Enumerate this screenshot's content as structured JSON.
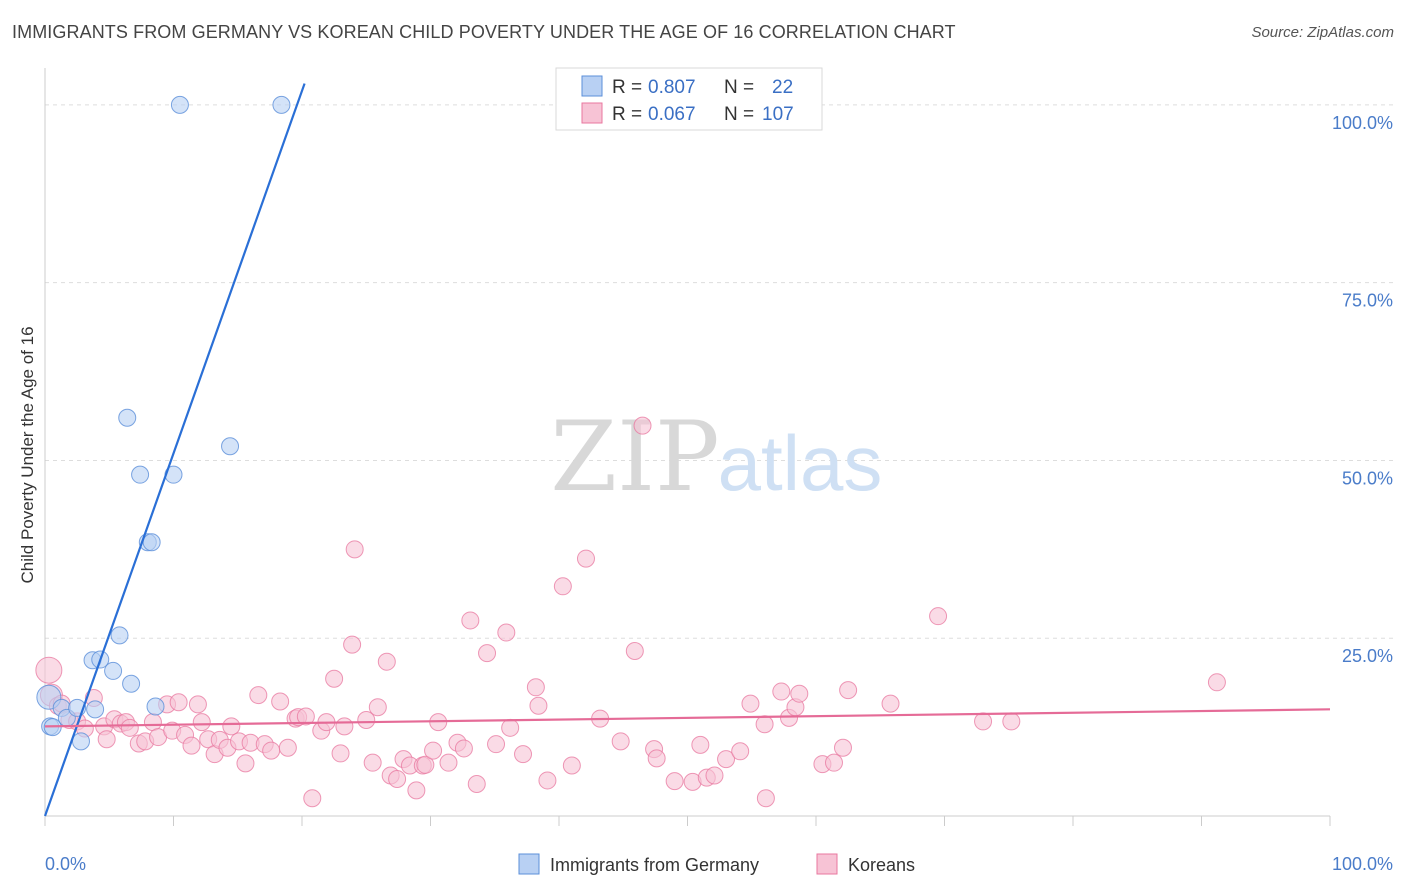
{
  "title": "IMMIGRANTS FROM GERMANY VS KOREAN CHILD POVERTY UNDER THE AGE OF 16 CORRELATION CHART",
  "source": "Source: ZipAtlas.com",
  "watermark": {
    "zip": "ZIP",
    "atlas": "atlas"
  },
  "colors": {
    "blue": "#5b8fd9",
    "blue_fill": "#b8d0f3",
    "blue_line": "#2a6fd6",
    "pink": "#e8779f",
    "pink_fill": "#f7c3d5",
    "pink_line": "#e56b97",
    "axis_text": "#4a7cc9"
  },
  "legend": {
    "rows": [
      {
        "r_label": "R =",
        "r_value": "0.807",
        "n_label": "N =",
        "n_value": "22"
      },
      {
        "r_label": "R =",
        "r_value": "0.067",
        "n_label": "N =",
        "n_value": "107"
      }
    ]
  },
  "bottom_legend": [
    {
      "label": "Immigrants from Germany"
    },
    {
      "label": "Koreans"
    }
  ],
  "chart_data": {
    "type": "scatter",
    "title": "IMMIGRANTS FROM GERMANY VS KOREAN CHILD POVERTY UNDER THE AGE OF 16 CORRELATION CHART",
    "xlabel": "",
    "ylabel": "Child Poverty Under the Age of 16",
    "xlim": [
      0,
      100
    ],
    "ylim": [
      0,
      105
    ],
    "x_tick_labels": [
      {
        "value": 0,
        "label": "0.0%"
      },
      {
        "value": 100,
        "label": "100.0%"
      }
    ],
    "y_tick_labels": [
      {
        "value": 25,
        "label": "25.0%"
      },
      {
        "value": 50,
        "label": "50.0%"
      },
      {
        "value": 75,
        "label": "75.0%"
      },
      {
        "value": 100,
        "label": "100.0%"
      }
    ],
    "series": [
      {
        "name": "Immigrants from Germany",
        "color": "#5b8fd9",
        "trend": {
          "x": [
            0,
            20.2
          ],
          "y": [
            0,
            103
          ]
        },
        "points": [
          [
            0.3,
            16.7
          ],
          [
            0.4,
            12.6
          ],
          [
            1.3,
            15.2
          ],
          [
            1.7,
            13.8
          ],
          [
            2.5,
            15.2
          ],
          [
            2.8,
            10.5
          ],
          [
            3.9,
            15.0
          ],
          [
            3.7,
            21.9
          ],
          [
            4.3,
            22.0
          ],
          [
            5.3,
            20.4
          ],
          [
            5.8,
            25.4
          ],
          [
            6.7,
            18.6
          ],
          [
            6.4,
            56.0
          ],
          [
            7.4,
            48.0
          ],
          [
            8.0,
            38.5
          ],
          [
            8.3,
            38.5
          ],
          [
            8.6,
            15.4
          ],
          [
            10.0,
            48.0
          ],
          [
            10.5,
            100.0
          ],
          [
            14.4,
            52.0
          ],
          [
            18.4,
            100.0
          ],
          [
            0.6,
            12.5
          ]
        ]
      },
      {
        "name": "Koreans",
        "color": "#e8779f",
        "trend": {
          "x": [
            0,
            100
          ],
          "y": [
            12.6,
            15.0
          ]
        },
        "points": [
          [
            0.3,
            20.5
          ],
          [
            0.5,
            17.0
          ],
          [
            1.0,
            15.5
          ],
          [
            1.3,
            15.8
          ],
          [
            1.9,
            13.5
          ],
          [
            2.5,
            13.3
          ],
          [
            3.1,
            12.3
          ],
          [
            3.8,
            16.6
          ],
          [
            4.6,
            12.6
          ],
          [
            4.8,
            10.8
          ],
          [
            5.4,
            13.6
          ],
          [
            5.9,
            13.0
          ],
          [
            6.3,
            13.2
          ],
          [
            6.6,
            12.4
          ],
          [
            7.3,
            10.2
          ],
          [
            7.8,
            10.5
          ],
          [
            8.4,
            13.2
          ],
          [
            8.8,
            11.1
          ],
          [
            9.5,
            15.7
          ],
          [
            9.9,
            12.0
          ],
          [
            10.4,
            16.0
          ],
          [
            10.9,
            11.4
          ],
          [
            11.4,
            9.9
          ],
          [
            11.9,
            15.7
          ],
          [
            12.2,
            13.2
          ],
          [
            12.7,
            10.8
          ],
          [
            13.2,
            8.7
          ],
          [
            13.6,
            10.7
          ],
          [
            14.2,
            9.6
          ],
          [
            14.5,
            12.6
          ],
          [
            15.1,
            10.5
          ],
          [
            15.6,
            7.4
          ],
          [
            16.0,
            10.3
          ],
          [
            16.6,
            17.0
          ],
          [
            17.1,
            10.1
          ],
          [
            17.6,
            9.2
          ],
          [
            18.3,
            16.1
          ],
          [
            18.9,
            9.6
          ],
          [
            19.5,
            13.7
          ],
          [
            19.7,
            13.9
          ],
          [
            20.3,
            14.0
          ],
          [
            20.8,
            2.5
          ],
          [
            21.5,
            12.0
          ],
          [
            21.9,
            13.2
          ],
          [
            22.5,
            19.3
          ],
          [
            23.0,
            8.8
          ],
          [
            23.3,
            12.6
          ],
          [
            23.9,
            24.1
          ],
          [
            24.1,
            37.5
          ],
          [
            25.0,
            13.5
          ],
          [
            25.5,
            7.5
          ],
          [
            25.9,
            15.3
          ],
          [
            26.6,
            21.7
          ],
          [
            26.9,
            5.7
          ],
          [
            27.4,
            5.2
          ],
          [
            27.9,
            8.0
          ],
          [
            28.4,
            7.1
          ],
          [
            28.9,
            3.6
          ],
          [
            29.4,
            7.1
          ],
          [
            29.6,
            7.2
          ],
          [
            30.2,
            9.2
          ],
          [
            30.6,
            13.2
          ],
          [
            31.4,
            7.5
          ],
          [
            32.1,
            10.3
          ],
          [
            32.6,
            9.5
          ],
          [
            33.1,
            27.5
          ],
          [
            33.6,
            4.5
          ],
          [
            34.4,
            22.9
          ],
          [
            35.1,
            10.1
          ],
          [
            35.9,
            25.8
          ],
          [
            36.2,
            12.4
          ],
          [
            37.2,
            8.7
          ],
          [
            38.2,
            18.1
          ],
          [
            38.4,
            15.5
          ],
          [
            39.1,
            5.0
          ],
          [
            40.3,
            32.3
          ],
          [
            41.0,
            7.1
          ],
          [
            42.1,
            36.2
          ],
          [
            43.2,
            13.7
          ],
          [
            44.8,
            10.5
          ],
          [
            45.9,
            23.2
          ],
          [
            46.5,
            54.9
          ],
          [
            47.4,
            9.4
          ],
          [
            47.6,
            8.1
          ],
          [
            49.0,
            4.9
          ],
          [
            50.4,
            4.8
          ],
          [
            51.0,
            10.0
          ],
          [
            51.5,
            5.4
          ],
          [
            52.1,
            5.7
          ],
          [
            53.0,
            8.0
          ],
          [
            54.1,
            9.1
          ],
          [
            54.9,
            15.8
          ],
          [
            56.0,
            12.9
          ],
          [
            57.3,
            17.5
          ],
          [
            57.9,
            13.8
          ],
          [
            58.4,
            15.3
          ],
          [
            58.7,
            17.2
          ],
          [
            60.5,
            7.3
          ],
          [
            61.4,
            7.5
          ],
          [
            62.1,
            9.6
          ],
          [
            62.5,
            17.7
          ],
          [
            65.8,
            15.8
          ],
          [
            69.5,
            28.1
          ],
          [
            73.0,
            13.3
          ],
          [
            75.2,
            13.3
          ],
          [
            91.2,
            18.8
          ],
          [
            56.1,
            2.5
          ]
        ]
      }
    ]
  }
}
